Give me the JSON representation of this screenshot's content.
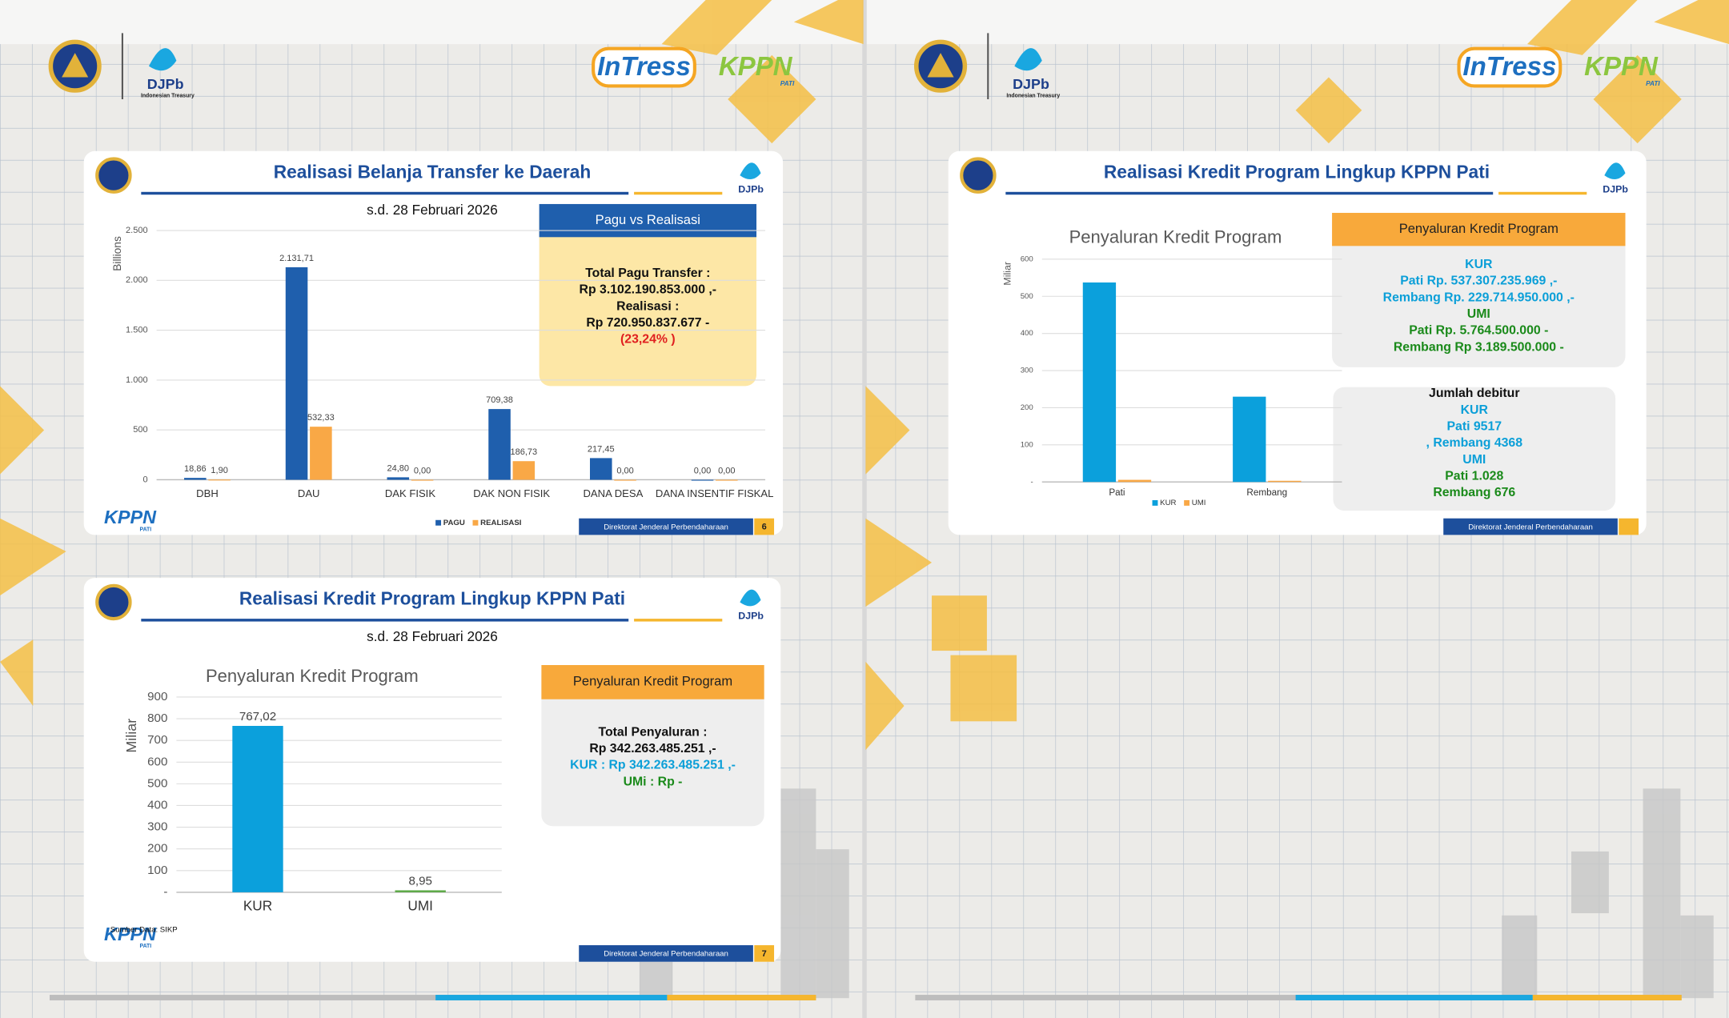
{
  "header": {
    "logo_text": "DJPb",
    "logo_subtext": "Indonesian Treasury",
    "app_name": "InTress",
    "office": "KPPN",
    "office_sub": "PATI"
  },
  "cards": [
    {
      "title": "Realisasi Belanja Transfer ke Daerah",
      "subtitle": "s.d. 28 Februari 2026",
      "footer": "Direktorat Jenderal Perbendaharaan",
      "page": "6",
      "panels": [
        {
          "heading": "Pagu vs Realisasi",
          "lines": [
            {
              "text": "Total Pagu Transfer :",
              "color": "#111111"
            },
            {
              "text": "Rp   3.102.190.853.000 ,-",
              "color": "#111111"
            },
            {
              "text": "Realisasi :",
              "color": "#111111"
            },
            {
              "text": "Rp   720.950.837.677   -",
              "color": "#111111"
            },
            {
              "text": "(23,24% )",
              "color": "#e02020"
            }
          ]
        }
      ]
    },
    {
      "title": "Realisasi Kredit Program Lingkup KPPN Pati",
      "subtitle": "s.d. 28 Februari 2026",
      "footer": "Direktorat Jenderal Perbendaharaan",
      "page": "7",
      "source": "Sumber Data: SIKP",
      "panels": [
        {
          "heading": "Penyaluran Kredit Program",
          "lines": [
            {
              "text": "Total Penyaluran :",
              "color": "#111111"
            },
            {
              "text": "Rp   342.263.485.251  ,-",
              "color": "#111111"
            },
            {
              "text": "KUR : Rp    342.263.485.251  ,-",
              "color": "#0b9fd8"
            },
            {
              "text": "UMi : Rp  -",
              "color": "#1a8a1a"
            }
          ]
        }
      ]
    },
    {
      "title": "Realisasi Kredit Program Lingkup KPPN Pati",
      "footer": "Direktorat Jenderal Perbendaharaan",
      "panels": [
        {
          "heading": "Penyaluran Kredit Program",
          "lines": [
            {
              "text": "KUR",
              "color": "#0b9fd8"
            },
            {
              "text": "Pati Rp. 537.307.235.969  ,-",
              "color": "#0b9fd8"
            },
            {
              "text": "Rembang Rp. 229.714.950.000  ,-",
              "color": "#0b9fd8"
            },
            {
              "text": "UMI",
              "color": "#1a8a1a"
            },
            {
              "text": "Pati Rp. 5.764.500.000  -",
              "color": "#1a8a1a"
            },
            {
              "text": "Rembang Rp  3.189.500.000  -",
              "color": "#1a8a1a"
            }
          ]
        },
        {
          "lines": [
            {
              "text": "Jumlah debitur",
              "color": "#111111"
            },
            {
              "text": "KUR",
              "color": "#0b9fd8"
            },
            {
              "text": "Pati   9517",
              "color": "#0b9fd8"
            },
            {
              "text": ", Rembang   4368",
              "color": "#0b9fd8"
            },
            {
              "text": "UMI",
              "color": "#0b9fd8"
            },
            {
              "text": "Pati  1.028",
              "color": "#1a8a1a"
            },
            {
              "text": "Rembang   676",
              "color": "#1a8a1a"
            }
          ]
        }
      ]
    }
  ],
  "chart_data": [
    {
      "type": "bar",
      "y_label": "Billions",
      "categories": [
        "DBH",
        "DAU",
        "DAK FISIK",
        "DAK NON FISIK",
        "DANA DESA",
        "DANA INSENTIF FISKAL"
      ],
      "series": [
        {
          "name": "PAGU",
          "color": "#1f5fad",
          "values": [
            18.86,
            2131.71,
            24.8,
            709.38,
            217.45,
            0
          ],
          "value_labels": [
            "18,86",
            "2.131,71",
            "24,80",
            "709,38",
            "217,45",
            "0,00"
          ]
        },
        {
          "name": "REALISASI",
          "color": "#f9a846",
          "values": [
            1.9,
            532.33,
            0,
            186.73,
            0,
            0
          ],
          "value_labels": [
            "1,90",
            "532,33",
            "0,00",
            "186,73",
            "0,00",
            "0,00"
          ]
        }
      ],
      "ylim": [
        0,
        2500
      ],
      "yticks": [
        0,
        500,
        {
          "value": 1000,
          "label": "1.000"
        },
        {
          "value": 1500,
          "label": "1.500"
        },
        {
          "value": 2000,
          "label": "2.000"
        },
        {
          "value": 2500,
          "label": "2.500"
        }
      ],
      "grid": true,
      "legend": "bottom"
    },
    {
      "type": "bar",
      "title": "Penyaluran Kredit Program",
      "y_label": "Miliar",
      "categories": [
        "KUR",
        "UMI"
      ],
      "values": [
        767.02,
        8.95
      ],
      "value_labels": [
        "767,02",
        "8,95"
      ],
      "colors": [
        "#0ba0dc",
        "#5aa844"
      ],
      "ylim": [
        0,
        900
      ],
      "yticks": [
        {
          "value": 0,
          "label": "-"
        },
        100,
        200,
        300,
        400,
        500,
        600,
        700,
        800,
        900
      ],
      "grid": true
    },
    {
      "type": "bar",
      "title": "Penyaluran Kredit Program",
      "y_label": "Miliar",
      "categories": [
        "Pati",
        "Rembang"
      ],
      "series": [
        {
          "name": "KUR",
          "color": "#0ba0dc",
          "values": [
            537.307235969,
            229.71495
          ]
        },
        {
          "name": "UMI",
          "color": "#f9a846",
          "values": [
            5.7645,
            3.1895
          ]
        }
      ],
      "ylim": [
        0,
        600
      ],
      "yticks": [
        {
          "value": 0,
          "label": "-"
        },
        100,
        200,
        300,
        400,
        500,
        600
      ],
      "grid": true,
      "legend": "bottom"
    }
  ]
}
